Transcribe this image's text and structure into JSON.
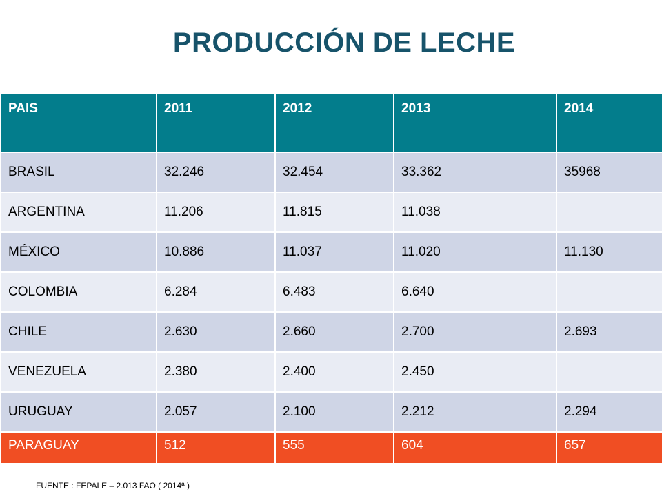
{
  "title": "PRODUCCIÓN DE LECHE",
  "table": {
    "headers": [
      "PAIS",
      "2011",
      "2012",
      "2013",
      "2014"
    ],
    "rows": [
      [
        "BRASIL",
        "32.246",
        "32.454",
        "33.362",
        "35968"
      ],
      [
        "ARGENTINA",
        "11.206",
        "11.815",
        "11.038",
        ""
      ],
      [
        "MÉXICO",
        "10.886",
        "11.037",
        "11.020",
        "11.130"
      ],
      [
        "COLOMBIA",
        "6.284",
        "6.483",
        "6.640",
        ""
      ],
      [
        "CHILE",
        "2.630",
        "2.660",
        "2.700",
        "2.693"
      ],
      [
        "VENEZUELA",
        "2.380",
        "2.400",
        "2.450",
        ""
      ],
      [
        "URUGUAY",
        "2.057",
        "2.100",
        "2.212",
        "2.294"
      ],
      [
        "PARAGUAY",
        "512",
        "555",
        "604",
        "657"
      ]
    ]
  },
  "source": "FUENTE : FEPALE – 2.013 FAO ( 2014ª )",
  "colors": {
    "title": "#17536a",
    "header_bg": "#037d8c",
    "row_dark": "#cfd5e6",
    "row_light": "#e9ecf4",
    "highlight": "#f04e23"
  }
}
